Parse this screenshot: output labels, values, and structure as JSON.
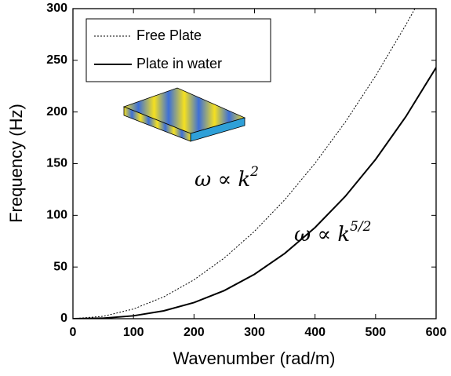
{
  "chart_data": {
    "type": "line",
    "xlabel": "Wavenumber (rad/m)",
    "ylabel": "Frequency (Hz)",
    "xlim": [
      0,
      600
    ],
    "ylim": [
      0,
      300
    ],
    "xticks": [
      0,
      100,
      200,
      300,
      400,
      500,
      600
    ],
    "yticks": [
      0,
      50,
      100,
      150,
      200,
      250,
      300
    ],
    "legend": "upper left",
    "series": [
      {
        "name": "Free Plate",
        "color": "#000000",
        "style": "dotted",
        "x": [
          0,
          50,
          100,
          150,
          200,
          250,
          300,
          350,
          400,
          450,
          500,
          550,
          565
        ],
        "values": [
          0,
          2.3,
          9.4,
          21.1,
          37.6,
          58.7,
          84.6,
          115.1,
          150.4,
          190.3,
          234.9,
          284.3,
          300
        ]
      },
      {
        "name": "Plate in water",
        "color": "#000000",
        "style": "solid",
        "x": [
          0,
          50,
          100,
          150,
          200,
          250,
          300,
          350,
          400,
          450,
          500,
          550,
          600
        ],
        "values": [
          0,
          0.5,
          2.8,
          7.6,
          15.6,
          27.2,
          43.0,
          63.2,
          88.2,
          118.4,
          154.1,
          195.5,
          243
        ]
      }
    ],
    "annotations": [
      {
        "base": "ω ∝ k",
        "sup": "2"
      },
      {
        "base": "ω ∝ k",
        "sup": "5/2"
      }
    ]
  }
}
